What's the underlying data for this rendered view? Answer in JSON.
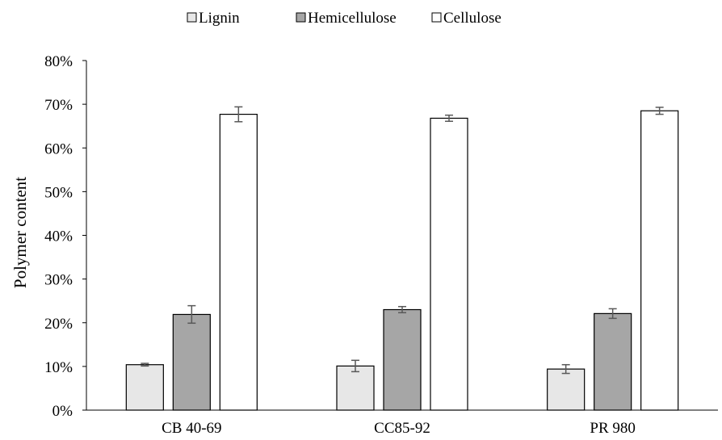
{
  "chart_data": {
    "type": "bar",
    "categories": [
      "CB 40-69",
      "CC85-92",
      "PR 980"
    ],
    "series": [
      {
        "name": "Lignin",
        "values": [
          0.104,
          0.101,
          0.094
        ],
        "errors": [
          0.003,
          0.013,
          0.01
        ],
        "color": "#e7e7e7"
      },
      {
        "name": "Hemicellulose",
        "values": [
          0.219,
          0.23,
          0.221
        ],
        "errors": [
          0.02,
          0.007,
          0.011
        ],
        "color": "#a6a6a6"
      },
      {
        "name": "Cellulose",
        "values": [
          0.677,
          0.668,
          0.685
        ],
        "errors": [
          0.017,
          0.007,
          0.008
        ],
        "color": "#ffffff"
      }
    ],
    "ylabel": "Polymer content",
    "ylim": [
      0,
      0.8
    ],
    "yticks": [
      "0%",
      "10%",
      "20%",
      "30%",
      "40%",
      "50%",
      "60%",
      "70%",
      "80%"
    ],
    "grid": false,
    "legend_position": "top"
  }
}
